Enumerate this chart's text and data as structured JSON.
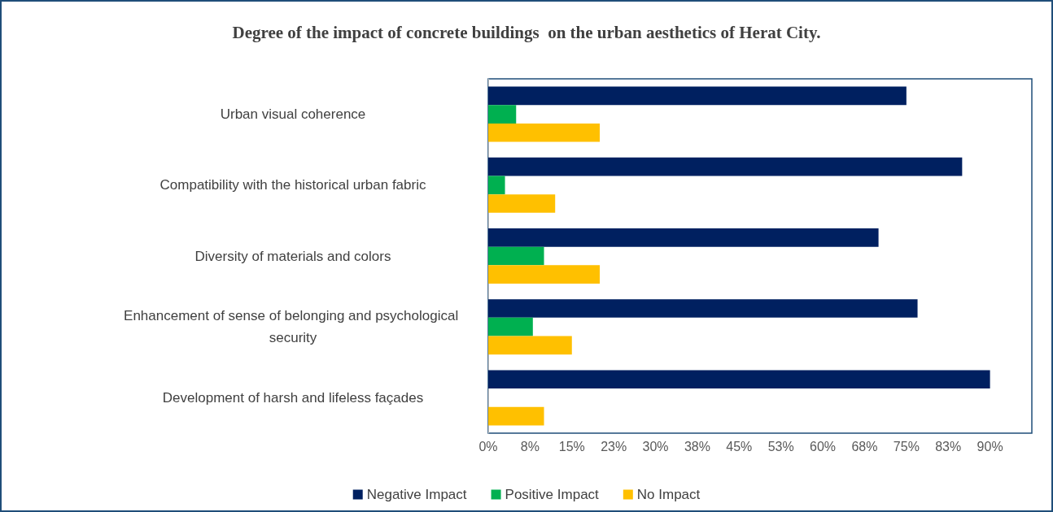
{
  "chart_data": {
    "type": "bar",
    "orientation": "horizontal",
    "title": "Degree of the impact of concrete buildings  on the urban aesthetics of Herat City.",
    "categories": [
      "Urban visual coherence",
      "Compatibility with the historical urban fabric",
      "Diversity of materials and colors",
      "Enhancement of sense of belonging and psychological security",
      "Development of harsh and lifeless façades"
    ],
    "series": [
      {
        "name": "Negative Impact",
        "color": "#002060",
        "values": [
          75,
          85,
          70,
          77,
          90
        ]
      },
      {
        "name": "Positive Impact",
        "color": "#00b050",
        "values": [
          5,
          3,
          10,
          8,
          0
        ]
      },
      {
        "name": "No Impact",
        "color": "#ffc000",
        "values": [
          20,
          12,
          20,
          15,
          10
        ]
      }
    ],
    "xlim": [
      0,
      97.5
    ],
    "xticks": [
      {
        "value": 0,
        "label": "0%"
      },
      {
        "value": 7.5,
        "label": "8%"
      },
      {
        "value": 15,
        "label": "15%"
      },
      {
        "value": 22.5,
        "label": "23%"
      },
      {
        "value": 30,
        "label": "30%"
      },
      {
        "value": 37.5,
        "label": "38%"
      },
      {
        "value": 45,
        "label": "45%"
      },
      {
        "value": 52.5,
        "label": "53%"
      },
      {
        "value": 60,
        "label": "60%"
      },
      {
        "value": 67.5,
        "label": "68%"
      },
      {
        "value": 75,
        "label": "75%"
      },
      {
        "value": 82.5,
        "label": "83%"
      },
      {
        "value": 90,
        "label": "90%"
      }
    ],
    "grid": false,
    "legend": "bottom"
  }
}
